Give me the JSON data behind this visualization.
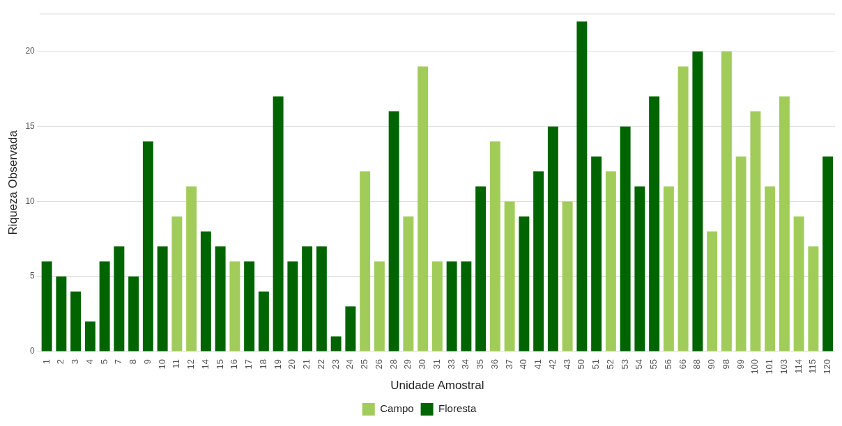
{
  "chart_data": {
    "type": "bar",
    "stacked": true,
    "xlabel": "Unidade Amostral",
    "ylabel": "Riqueza Observada",
    "categories": [
      "1",
      "2",
      "3",
      "4",
      "5",
      "7",
      "8",
      "9",
      "10",
      "11",
      "12",
      "14",
      "15",
      "16",
      "17",
      "18",
      "19",
      "20",
      "21",
      "22",
      "23",
      "24",
      "25",
      "26",
      "28",
      "29",
      "30",
      "31",
      "33",
      "34",
      "35",
      "36",
      "37",
      "40",
      "41",
      "42",
      "43",
      "50",
      "51",
      "52",
      "53",
      "54",
      "55",
      "56",
      "66",
      "88",
      "90",
      "98",
      "99",
      "100",
      "101",
      "103",
      "114",
      "115",
      "120"
    ],
    "series": [
      {
        "name": "Campo",
        "color": "#a1cc5a",
        "values": [
          null,
          null,
          null,
          null,
          null,
          null,
          null,
          null,
          null,
          9,
          11,
          null,
          null,
          6,
          null,
          null,
          null,
          null,
          null,
          null,
          null,
          null,
          12,
          6,
          null,
          9,
          19,
          6,
          null,
          null,
          null,
          14,
          10,
          null,
          null,
          null,
          10,
          null,
          null,
          12,
          null,
          null,
          null,
          11,
          19,
          null,
          8,
          20,
          13,
          16,
          11,
          17,
          9,
          7,
          null
        ]
      },
      {
        "name": "Floresta",
        "color": "#006400",
        "values": [
          6,
          5,
          4,
          2,
          6,
          7,
          5,
          14,
          7,
          null,
          null,
          8,
          7,
          null,
          6,
          4,
          17,
          6,
          7,
          7,
          1,
          3,
          null,
          null,
          16,
          null,
          null,
          null,
          6,
          6,
          11,
          null,
          null,
          9,
          12,
          15,
          null,
          22,
          13,
          null,
          15,
          11,
          17,
          null,
          null,
          20,
          null,
          null,
          null,
          null,
          null,
          null,
          null,
          null,
          13
        ]
      }
    ],
    "ylim": [
      0,
      22.5
    ],
    "yticks": [
      0,
      5,
      10,
      15,
      20
    ],
    "grid": true,
    "legend": "bottom"
  }
}
